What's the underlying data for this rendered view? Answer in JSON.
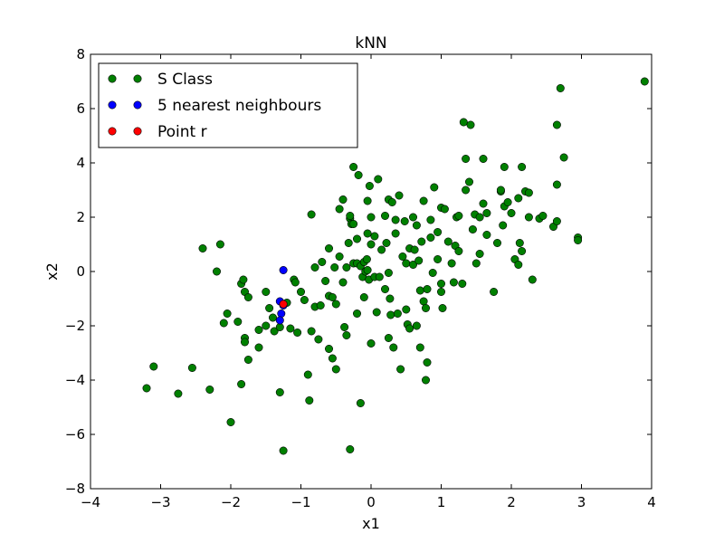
{
  "chart_data": {
    "type": "scatter",
    "title": "kNN",
    "xlabel": "x1",
    "ylabel": "x2",
    "xlim": [
      -4,
      4
    ],
    "ylim": [
      -8,
      8
    ],
    "xticks": [
      -4,
      -3,
      -2,
      -1,
      0,
      1,
      2,
      3,
      4
    ],
    "yticks": [
      -8,
      -6,
      -4,
      -2,
      0,
      2,
      4,
      6,
      8
    ],
    "xtick_labels": [
      "−4",
      "−3",
      "−2",
      "−1",
      "0",
      "1",
      "2",
      "3",
      "4"
    ],
    "ytick_labels": [
      "−8",
      "−6",
      "−4",
      "−2",
      "0",
      "2",
      "4",
      "6",
      "8"
    ],
    "grid": false,
    "legend_position": "top-left",
    "series": [
      {
        "name": "S Class",
        "color": "#008000",
        "points": [
          [
            -3.2,
            -4.3
          ],
          [
            -3.1,
            -3.5
          ],
          [
            -2.75,
            -4.5
          ],
          [
            -2.55,
            -3.55
          ],
          [
            -2.3,
            -4.35
          ],
          [
            -2.4,
            0.85
          ],
          [
            -2.2,
            0.0
          ],
          [
            -2.15,
            1.0
          ],
          [
            -2.1,
            -1.9
          ],
          [
            -2.05,
            -1.55
          ],
          [
            -2.0,
            -5.55
          ],
          [
            -1.9,
            -1.85
          ],
          [
            -1.85,
            -4.15
          ],
          [
            -1.85,
            -0.45
          ],
          [
            -1.82,
            -0.3
          ],
          [
            -1.8,
            -2.45
          ],
          [
            -1.8,
            -2.6
          ],
          [
            -1.8,
            -0.75
          ],
          [
            -1.75,
            -0.95
          ],
          [
            -1.75,
            -3.25
          ],
          [
            -1.6,
            -2.15
          ],
          [
            -1.6,
            -2.8
          ],
          [
            -1.5,
            -2.0
          ],
          [
            -1.5,
            -0.75
          ],
          [
            -1.45,
            -1.35
          ],
          [
            -1.4,
            -1.7
          ],
          [
            -1.38,
            -2.2
          ],
          [
            -1.3,
            -2.05
          ],
          [
            -1.3,
            -4.45
          ],
          [
            -1.25,
            -6.6
          ],
          [
            -1.2,
            -1.15
          ],
          [
            -1.15,
            -2.1
          ],
          [
            -1.1,
            -0.3
          ],
          [
            -1.08,
            -0.4
          ],
          [
            -1.05,
            -2.25
          ],
          [
            -1.0,
            -0.75
          ],
          [
            -0.95,
            -1.05
          ],
          [
            -0.9,
            -3.8
          ],
          [
            -0.88,
            -4.75
          ],
          [
            -0.85,
            -2.2
          ],
          [
            -0.85,
            2.1
          ],
          [
            -0.8,
            -1.3
          ],
          [
            -0.8,
            0.15
          ],
          [
            -0.75,
            -2.5
          ],
          [
            -0.72,
            -1.25
          ],
          [
            -0.7,
            0.35
          ],
          [
            -0.65,
            -0.35
          ],
          [
            -0.6,
            -0.9
          ],
          [
            -0.6,
            -2.85
          ],
          [
            -0.6,
            0.85
          ],
          [
            -0.55,
            -3.2
          ],
          [
            -0.55,
            -0.95
          ],
          [
            -0.52,
            0.15
          ],
          [
            -0.5,
            -3.6
          ],
          [
            -0.5,
            -1.2
          ],
          [
            -0.45,
            0.55
          ],
          [
            -0.45,
            2.3
          ],
          [
            -0.4,
            -0.4
          ],
          [
            -0.4,
            2.65
          ],
          [
            -0.38,
            -2.05
          ],
          [
            -0.35,
            -2.35
          ],
          [
            -0.35,
            0.15
          ],
          [
            -0.32,
            1.05
          ],
          [
            -0.3,
            1.95
          ],
          [
            -0.3,
            2.05
          ],
          [
            -0.3,
            -6.55
          ],
          [
            -0.28,
            1.75
          ],
          [
            -0.25,
            1.75
          ],
          [
            -0.25,
            0.3
          ],
          [
            -0.25,
            3.85
          ],
          [
            -0.2,
            1.2
          ],
          [
            -0.2,
            0.3
          ],
          [
            -0.2,
            -1.55
          ],
          [
            -0.18,
            3.55
          ],
          [
            -0.15,
            -4.85
          ],
          [
            -0.15,
            0.2
          ],
          [
            -0.12,
            -0.2
          ],
          [
            -0.1,
            -0.95
          ],
          [
            -0.1,
            0.35
          ],
          [
            -0.08,
            0.0
          ],
          [
            -0.06,
            0.45
          ],
          [
            -0.05,
            2.6
          ],
          [
            -0.05,
            0.05
          ],
          [
            -0.05,
            1.4
          ],
          [
            -0.03,
            -0.3
          ],
          [
            -0.02,
            3.15
          ],
          [
            0.0,
            2.0
          ],
          [
            0.0,
            -2.65
          ],
          [
            0.0,
            1.0
          ],
          [
            0.05,
            -0.2
          ],
          [
            0.05,
            1.3
          ],
          [
            0.08,
            -1.5
          ],
          [
            0.1,
            3.4
          ],
          [
            0.12,
            -0.2
          ],
          [
            0.15,
            0.8
          ],
          [
            0.2,
            -0.65
          ],
          [
            0.2,
            2.05
          ],
          [
            0.22,
            1.05
          ],
          [
            0.25,
            -0.05
          ],
          [
            0.25,
            -2.45
          ],
          [
            0.25,
            2.65
          ],
          [
            0.27,
            -1.0
          ],
          [
            0.28,
            -1.6
          ],
          [
            0.3,
            2.55
          ],
          [
            0.32,
            -2.8
          ],
          [
            0.35,
            1.4
          ],
          [
            0.35,
            1.9
          ],
          [
            0.38,
            -1.55
          ],
          [
            0.4,
            2.8
          ],
          [
            0.42,
            -3.6
          ],
          [
            0.45,
            0.55
          ],
          [
            0.48,
            1.85
          ],
          [
            0.5,
            -1.4
          ],
          [
            0.5,
            0.3
          ],
          [
            0.52,
            -1.95
          ],
          [
            0.55,
            -2.1
          ],
          [
            0.55,
            0.85
          ],
          [
            0.6,
            0.25
          ],
          [
            0.6,
            2.0
          ],
          [
            0.62,
            0.8
          ],
          [
            0.65,
            -2.0
          ],
          [
            0.65,
            1.7
          ],
          [
            0.68,
            0.4
          ],
          [
            0.7,
            -0.7
          ],
          [
            0.7,
            -2.8
          ],
          [
            0.72,
            1.1
          ],
          [
            0.75,
            -1.1
          ],
          [
            0.75,
            2.6
          ],
          [
            0.78,
            -4.0
          ],
          [
            0.78,
            -1.35
          ],
          [
            0.8,
            -3.35
          ],
          [
            0.8,
            -0.65
          ],
          [
            0.85,
            1.25
          ],
          [
            0.85,
            1.9
          ],
          [
            0.88,
            -0.05
          ],
          [
            0.9,
            3.1
          ],
          [
            0.95,
            0.45
          ],
          [
            0.95,
            1.45
          ],
          [
            1.0,
            -0.45
          ],
          [
            1.0,
            -0.75
          ],
          [
            1.0,
            2.35
          ],
          [
            1.02,
            -1.35
          ],
          [
            1.05,
            2.3
          ],
          [
            1.1,
            1.1
          ],
          [
            1.15,
            0.3
          ],
          [
            1.18,
            -0.4
          ],
          [
            1.2,
            0.95
          ],
          [
            1.22,
            2.0
          ],
          [
            1.25,
            2.05
          ],
          [
            1.25,
            0.75
          ],
          [
            1.3,
            -0.45
          ],
          [
            1.32,
            5.5
          ],
          [
            1.35,
            3.0
          ],
          [
            1.35,
            4.15
          ],
          [
            1.4,
            3.3
          ],
          [
            1.42,
            5.4
          ],
          [
            1.45,
            1.55
          ],
          [
            1.48,
            2.1
          ],
          [
            1.5,
            0.3
          ],
          [
            1.55,
            0.65
          ],
          [
            1.55,
            2.0
          ],
          [
            1.6,
            2.5
          ],
          [
            1.6,
            4.15
          ],
          [
            1.65,
            1.35
          ],
          [
            1.65,
            2.15
          ],
          [
            1.75,
            -0.75
          ],
          [
            1.8,
            1.05
          ],
          [
            1.85,
            2.95
          ],
          [
            1.85,
            3.0
          ],
          [
            1.88,
            1.7
          ],
          [
            1.9,
            3.85
          ],
          [
            1.9,
            2.4
          ],
          [
            1.95,
            2.55
          ],
          [
            2.0,
            2.15
          ],
          [
            2.05,
            0.45
          ],
          [
            2.1,
            2.7
          ],
          [
            2.1,
            0.25
          ],
          [
            2.12,
            1.05
          ],
          [
            2.15,
            3.85
          ],
          [
            2.15,
            0.75
          ],
          [
            2.2,
            2.95
          ],
          [
            2.25,
            2.9
          ],
          [
            2.25,
            2.0
          ],
          [
            2.3,
            -0.3
          ],
          [
            2.4,
            1.95
          ],
          [
            2.45,
            2.05
          ],
          [
            2.6,
            1.65
          ],
          [
            2.65,
            1.85
          ],
          [
            2.65,
            5.4
          ],
          [
            2.65,
            3.2
          ],
          [
            2.7,
            6.75
          ],
          [
            2.75,
            4.2
          ],
          [
            2.95,
            1.25
          ],
          [
            2.95,
            1.15
          ],
          [
            3.9,
            7.0
          ]
        ]
      },
      {
        "name": "5 nearest neighbours",
        "color": "#0000ff",
        "points": [
          [
            -1.25,
            0.05
          ],
          [
            -1.3,
            -1.1
          ],
          [
            -1.28,
            -1.55
          ],
          [
            -1.3,
            -1.8
          ],
          [
            -1.25,
            -1.25
          ]
        ]
      },
      {
        "name": "Point r",
        "color": "#ff0000",
        "points": [
          [
            -1.25,
            -1.2
          ]
        ]
      }
    ]
  }
}
